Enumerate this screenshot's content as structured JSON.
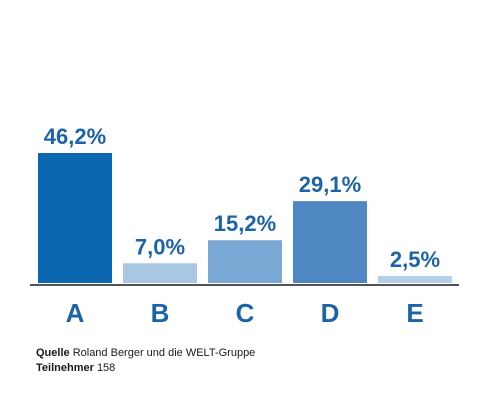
{
  "chart_data": {
    "type": "bar",
    "categories": [
      "A",
      "B",
      "C",
      "D",
      "E"
    ],
    "values": [
      46.2,
      7.0,
      15.2,
      29.1,
      2.5
    ],
    "value_labels": [
      "46,2%",
      "7,0%",
      "15,2%",
      "29,1%",
      "2,5%"
    ],
    "colors": [
      "#0b68b0",
      "#a9c6e3",
      "#7aa8d5",
      "#4f87c3",
      "#b6cfe8"
    ],
    "ylim": [
      0,
      50
    ],
    "grid": false,
    "legend": "none"
  },
  "footer": {
    "source_label": "Quelle",
    "source_text": "Roland Berger und die WELT-Gruppe",
    "participants_label": "Teilnehmer",
    "participants_value": "158"
  }
}
